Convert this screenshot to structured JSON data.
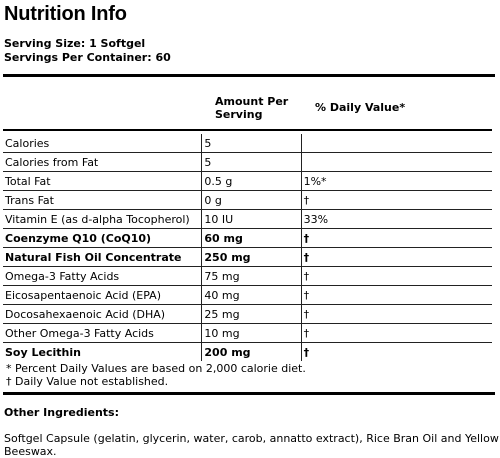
{
  "title": "Nutrition Info",
  "serving_size": "Serving Size: 1 Softgel",
  "servings_per_container": "Servings Per Container: 60",
  "table": {
    "headers": {
      "amount": "Amount Per Serving",
      "daily_value": "% Daily Value*"
    },
    "rows": [
      {
        "name": "Calories",
        "amount": "5",
        "dv": "",
        "bold": false
      },
      {
        "name": "Calories from Fat",
        "amount": "5",
        "dv": "",
        "bold": false
      },
      {
        "name": "Total Fat",
        "amount": "0.5 g",
        "dv": "1%*",
        "bold": false
      },
      {
        "name": "Trans Fat",
        "amount": "0 g",
        "dv": "†",
        "bold": false
      },
      {
        "name": "Vitamin E (as d-alpha Tocopherol)",
        "amount": "10 IU",
        "dv": "33%",
        "bold": false
      },
      {
        "name": "Coenzyme Q10 (CoQ10)",
        "amount": "60 mg",
        "dv": "†",
        "bold": true
      },
      {
        "name": "Natural Fish Oil Concentrate",
        "amount": "250 mg",
        "dv": "†",
        "bold": true
      },
      {
        "name": "Omega-3 Fatty Acids",
        "amount": "75 mg",
        "dv": "†",
        "bold": false
      },
      {
        "name": "Eicosapentaenoic Acid (EPA)",
        "amount": "40 mg",
        "dv": "†",
        "bold": false
      },
      {
        "name": "Docosahexaenoic Acid (DHA)",
        "amount": "25 mg",
        "dv": "†",
        "bold": false
      },
      {
        "name": "Other Omega-3 Fatty Acids",
        "amount": "10 mg",
        "dv": "†",
        "bold": false
      },
      {
        "name": "Soy Lecithin",
        "amount": "200 mg",
        "dv": "†",
        "bold": true
      }
    ]
  },
  "footnotes": [
    "* Percent Daily Values are based on 2,000 calorie diet.",
    "† Daily Value not established."
  ],
  "other_ingredients": {
    "label": "Other Ingredients:",
    "text": "Softgel Capsule (gelatin, glycerin, water, carob, annatto extract), Rice Bran Oil and Yellow Beeswax."
  }
}
